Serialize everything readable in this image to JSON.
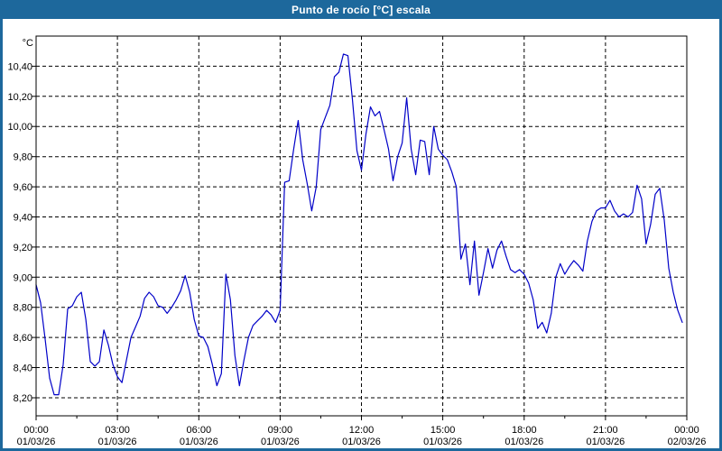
{
  "window": {
    "title": "Punto de rocío [°C] escala"
  },
  "colors": {
    "frame": "#1d689c",
    "title_text": "#ffffff",
    "background": "#ffffff",
    "grid": "#000000",
    "axis": "#000000",
    "line": "#0000c8"
  },
  "chart_data": {
    "type": "line",
    "title": "Punto de rocío [°C] escala",
    "xlabel": "",
    "ylabel": "°C",
    "legend": "none",
    "grid": "dashed",
    "ylim": [
      8.08,
      10.6
    ],
    "xlim_minutes": [
      0,
      1440
    ],
    "y_axis": {
      "unit_label": "°C",
      "tick_step": 0.2,
      "ticks": [
        {
          "value": 8.2,
          "label": "8,20"
        },
        {
          "value": 8.4,
          "label": "8,40"
        },
        {
          "value": 8.6,
          "label": "8,60"
        },
        {
          "value": 8.8,
          "label": "8,80"
        },
        {
          "value": 9.0,
          "label": "9,00"
        },
        {
          "value": 9.2,
          "label": "9,20"
        },
        {
          "value": 9.4,
          "label": "9,40"
        },
        {
          "value": 9.6,
          "label": "9,60"
        },
        {
          "value": 9.8,
          "label": "9,80"
        },
        {
          "value": 10.0,
          "label": "10,00"
        },
        {
          "value": 10.2,
          "label": "10,20"
        },
        {
          "value": 10.4,
          "label": "10,40"
        }
      ]
    },
    "x_axis": {
      "tick_step_minutes": 180,
      "ticks": [
        {
          "minutes": 0,
          "time": "00:00",
          "date": "01/03/26"
        },
        {
          "minutes": 180,
          "time": "03:00",
          "date": "01/03/26"
        },
        {
          "minutes": 360,
          "time": "06:00",
          "date": "01/03/26"
        },
        {
          "minutes": 540,
          "time": "09:00",
          "date": "01/03/26"
        },
        {
          "minutes": 720,
          "time": "12:00",
          "date": "01/03/26"
        },
        {
          "minutes": 900,
          "time": "15:00",
          "date": "01/03/26"
        },
        {
          "minutes": 1080,
          "time": "18:00",
          "date": "01/03/26"
        },
        {
          "minutes": 1260,
          "time": "21:00",
          "date": "01/03/26"
        },
        {
          "minutes": 1440,
          "time": "00:00",
          "date": "02/03/26"
        }
      ]
    },
    "series": [
      {
        "name": "Punto de rocío [°C]",
        "color": "#0000c8",
        "points": [
          [
            0,
            8.95
          ],
          [
            10,
            8.83
          ],
          [
            20,
            8.59
          ],
          [
            30,
            8.33
          ],
          [
            40,
            8.22
          ],
          [
            50,
            8.22
          ],
          [
            60,
            8.42
          ],
          [
            70,
            8.79
          ],
          [
            80,
            8.81
          ],
          [
            90,
            8.87
          ],
          [
            100,
            8.9
          ],
          [
            110,
            8.72
          ],
          [
            120,
            8.44
          ],
          [
            130,
            8.41
          ],
          [
            140,
            8.44
          ],
          [
            150,
            8.65
          ],
          [
            160,
            8.55
          ],
          [
            170,
            8.42
          ],
          [
            180,
            8.34
          ],
          [
            190,
            8.3
          ],
          [
            200,
            8.45
          ],
          [
            210,
            8.6
          ],
          [
            220,
            8.67
          ],
          [
            230,
            8.74
          ],
          [
            240,
            8.86
          ],
          [
            250,
            8.9
          ],
          [
            260,
            8.87
          ],
          [
            270,
            8.81
          ],
          [
            280,
            8.8
          ],
          [
            290,
            8.76
          ],
          [
            300,
            8.8
          ],
          [
            310,
            8.85
          ],
          [
            320,
            8.91
          ],
          [
            330,
            9.01
          ],
          [
            340,
            8.9
          ],
          [
            350,
            8.72
          ],
          [
            360,
            8.61
          ],
          [
            370,
            8.6
          ],
          [
            380,
            8.54
          ],
          [
            390,
            8.42
          ],
          [
            400,
            8.28
          ],
          [
            410,
            8.36
          ],
          [
            420,
            9.02
          ],
          [
            430,
            8.85
          ],
          [
            440,
            8.48
          ],
          [
            450,
            8.28
          ],
          [
            460,
            8.45
          ],
          [
            470,
            8.6
          ],
          [
            480,
            8.68
          ],
          [
            490,
            8.71
          ],
          [
            500,
            8.74
          ],
          [
            510,
            8.78
          ],
          [
            520,
            8.75
          ],
          [
            530,
            8.7
          ],
          [
            540,
            8.78
          ],
          [
            550,
            9.63
          ],
          [
            560,
            9.64
          ],
          [
            570,
            9.85
          ],
          [
            580,
            10.04
          ],
          [
            590,
            9.78
          ],
          [
            600,
            9.62
          ],
          [
            610,
            9.44
          ],
          [
            620,
            9.6
          ],
          [
            630,
            9.98
          ],
          [
            640,
            10.06
          ],
          [
            650,
            10.14
          ],
          [
            660,
            10.33
          ],
          [
            670,
            10.36
          ],
          [
            680,
            10.48
          ],
          [
            690,
            10.47
          ],
          [
            700,
            10.18
          ],
          [
            710,
            9.84
          ],
          [
            720,
            9.71
          ],
          [
            730,
            9.95
          ],
          [
            740,
            10.13
          ],
          [
            750,
            10.07
          ],
          [
            760,
            10.1
          ],
          [
            770,
            9.98
          ],
          [
            780,
            9.85
          ],
          [
            790,
            9.64
          ],
          [
            800,
            9.8
          ],
          [
            810,
            9.89
          ],
          [
            820,
            10.19
          ],
          [
            830,
            9.85
          ],
          [
            840,
            9.68
          ],
          [
            850,
            9.91
          ],
          [
            860,
            9.9
          ],
          [
            870,
            9.68
          ],
          [
            880,
            10.0
          ],
          [
            890,
            9.85
          ],
          [
            900,
            9.81
          ],
          [
            910,
            9.78
          ],
          [
            920,
            9.7
          ],
          [
            930,
            9.6
          ],
          [
            940,
            9.12
          ],
          [
            950,
            9.22
          ],
          [
            960,
            8.95
          ],
          [
            970,
            9.24
          ],
          [
            980,
            8.88
          ],
          [
            990,
            9.03
          ],
          [
            1000,
            9.19
          ],
          [
            1010,
            9.06
          ],
          [
            1020,
            9.18
          ],
          [
            1030,
            9.24
          ],
          [
            1040,
            9.14
          ],
          [
            1050,
            9.05
          ],
          [
            1060,
            9.03
          ],
          [
            1070,
            9.05
          ],
          [
            1080,
            9.02
          ],
          [
            1090,
            8.96
          ],
          [
            1100,
            8.85
          ],
          [
            1110,
            8.66
          ],
          [
            1120,
            8.7
          ],
          [
            1130,
            8.63
          ],
          [
            1140,
            8.76
          ],
          [
            1150,
            9.0
          ],
          [
            1160,
            9.09
          ],
          [
            1170,
            9.02
          ],
          [
            1180,
            9.07
          ],
          [
            1190,
            9.11
          ],
          [
            1200,
            9.08
          ],
          [
            1210,
            9.04
          ],
          [
            1220,
            9.24
          ],
          [
            1230,
            9.37
          ],
          [
            1240,
            9.44
          ],
          [
            1250,
            9.46
          ],
          [
            1260,
            9.46
          ],
          [
            1270,
            9.51
          ],
          [
            1280,
            9.44
          ],
          [
            1290,
            9.4
          ],
          [
            1300,
            9.42
          ],
          [
            1310,
            9.4
          ],
          [
            1320,
            9.43
          ],
          [
            1330,
            9.61
          ],
          [
            1340,
            9.52
          ],
          [
            1350,
            9.22
          ],
          [
            1360,
            9.35
          ],
          [
            1370,
            9.55
          ],
          [
            1380,
            9.59
          ],
          [
            1390,
            9.38
          ],
          [
            1400,
            9.06
          ],
          [
            1410,
            8.9
          ],
          [
            1420,
            8.78
          ],
          [
            1430,
            8.7
          ]
        ]
      }
    ]
  }
}
